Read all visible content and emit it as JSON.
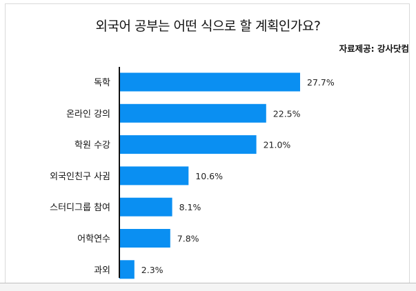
{
  "chart_data": {
    "type": "bar",
    "orientation": "horizontal",
    "title": "외국어 공부는 어떤 식으로 할 계획인가요?",
    "source": "자료제공: 강사닷컴",
    "categories": [
      "독학",
      "온라인 강의",
      "학원 수강",
      "외국인친구 사귐",
      "스터디그룹 참여",
      "어학연수",
      "과외"
    ],
    "values": [
      27.7,
      22.5,
      21.0,
      10.6,
      8.1,
      7.8,
      2.3
    ],
    "value_labels": [
      "27.7%",
      "22.5%",
      "21.0%",
      "10.6%",
      "8.1%",
      "7.8%",
      "2.3%"
    ],
    "xlim": [
      0,
      30
    ],
    "grid": false,
    "legend": "none",
    "colors": {
      "bar": "#0a8ff2",
      "text": "#111111",
      "axis": "#111111"
    }
  }
}
